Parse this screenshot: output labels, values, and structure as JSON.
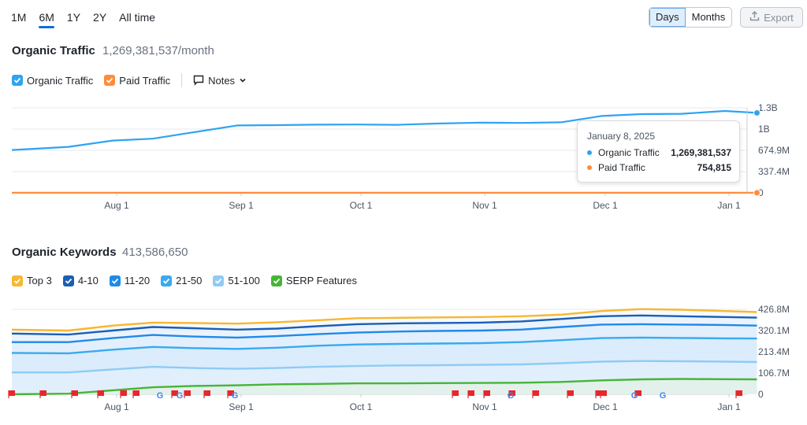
{
  "periods": [
    "1M",
    "6M",
    "1Y",
    "2Y",
    "All time"
  ],
  "active_period": "6M",
  "view": {
    "days": "Days",
    "months": "Months",
    "active": "Days"
  },
  "export_label": "Export",
  "traffic": {
    "title": "Organic Traffic",
    "value": "1,269,381,537/month",
    "legend": [
      {
        "label": "Organic Traffic",
        "color": "#2ea3f2",
        "checked": true
      },
      {
        "label": "Paid Traffic",
        "color": "#ff8c3a",
        "checked": true
      }
    ],
    "notes_label": "Notes",
    "tooltip": {
      "date": "January 8, 2025",
      "rows": [
        {
          "label": "Organic Traffic",
          "value": "1,269,381,537",
          "color": "#2ea3f2"
        },
        {
          "label": "Paid Traffic",
          "value": "754,815",
          "color": "#ff8c3a"
        }
      ]
    }
  },
  "keywords": {
    "title": "Organic Keywords",
    "value": "413,586,650",
    "legend": [
      {
        "label": "Top 3",
        "color": "#f8b731"
      },
      {
        "label": "4-10",
        "color": "#1a5fb4"
      },
      {
        "label": "11-20",
        "color": "#1f8ae8"
      },
      {
        "label": "21-50",
        "color": "#38aaf0"
      },
      {
        "label": "51-100",
        "color": "#8ecbf6"
      },
      {
        "label": "SERP Features",
        "color": "#46b535"
      }
    ]
  },
  "chart_data": [
    {
      "type": "line",
      "x_ticks": [
        "Aug 1",
        "Sep 1",
        "Oct 1",
        "Nov 1",
        "Dec 1",
        "Jan 1"
      ],
      "y_ticks": [
        "1.3B",
        "1B",
        "674.9M",
        "337.4M",
        "0"
      ],
      "ylim": [
        0,
        1350000000
      ],
      "x": [
        "Jul 10",
        "Jul 20",
        "Jul 31",
        "Aug 10",
        "Aug 20",
        "Aug 31",
        "Sep 10",
        "Sep 20",
        "Sep 30",
        "Oct 10",
        "Oct 20",
        "Oct 31",
        "Nov 10",
        "Nov 20",
        "Nov 30",
        "Dec 10",
        "Dec 20",
        "Dec 31",
        "Jan 8"
      ],
      "series": [
        {
          "name": "Organic Traffic",
          "color": "#2ea3f2",
          "values": [
            680000000,
            730000000,
            830000000,
            860000000,
            960000000,
            1070000000,
            1075000000,
            1082000000,
            1085000000,
            1080000000,
            1100000000,
            1115000000,
            1110000000,
            1120000000,
            1220000000,
            1250000000,
            1255000000,
            1300000000,
            1269381537
          ]
        },
        {
          "name": "Paid Traffic",
          "color": "#ff8c3a",
          "values": [
            750000,
            752000,
            751000,
            753000,
            754000,
            752000,
            751000,
            753000,
            754000,
            753000,
            752000,
            754000,
            753000,
            754000,
            754000,
            755000,
            754000,
            755000,
            754815
          ]
        }
      ]
    },
    {
      "type": "area",
      "x_ticks": [
        "Aug 1",
        "Sep 1",
        "Oct 1",
        "Nov 1",
        "Dec 1",
        "Jan 1"
      ],
      "y_ticks": [
        "426.8M",
        "320.1M",
        "213.4M",
        "106.7M",
        "0"
      ],
      "ylim": [
        0,
        426800000
      ],
      "x": [
        "Jul 10",
        "Jul 20",
        "Jul 31",
        "Aug 10",
        "Aug 20",
        "Aug 31",
        "Sep 10",
        "Sep 20",
        "Sep 30",
        "Oct 10",
        "Oct 20",
        "Oct 31",
        "Nov 10",
        "Nov 20",
        "Nov 30",
        "Dec 10",
        "Dec 20",
        "Dec 31",
        "Jan 8"
      ],
      "series": [
        {
          "name": "Top 3",
          "color": "#f8b731",
          "values": [
            325000000,
            320000000,
            345000000,
            360000000,
            358000000,
            355000000,
            362000000,
            372000000,
            382000000,
            384000000,
            386000000,
            388000000,
            392000000,
            400000000,
            418000000,
            428000000,
            425000000,
            418000000,
            413000000
          ]
        },
        {
          "name": "4-10",
          "color": "#1a5fb4",
          "values": [
            305000000,
            300000000,
            320000000,
            338000000,
            332000000,
            325000000,
            330000000,
            342000000,
            352000000,
            356000000,
            358000000,
            360000000,
            366000000,
            378000000,
            392000000,
            396000000,
            392000000,
            388000000,
            385000000
          ]
        },
        {
          "name": "11-20",
          "color": "#1f8ae8",
          "values": [
            262000000,
            262000000,
            282000000,
            298000000,
            290000000,
            285000000,
            292000000,
            302000000,
            310000000,
            315000000,
            318000000,
            320000000,
            325000000,
            338000000,
            350000000,
            352000000,
            350000000,
            348000000,
            345000000
          ]
        },
        {
          "name": "21-50",
          "color": "#38aaf0",
          "values": [
            208000000,
            206000000,
            224000000,
            238000000,
            232000000,
            228000000,
            234000000,
            244000000,
            250000000,
            253000000,
            255000000,
            257000000,
            262000000,
            272000000,
            282000000,
            285000000,
            283000000,
            281000000,
            280000000
          ]
        },
        {
          "name": "51-100",
          "color": "#8ecbf6",
          "values": [
            110000000,
            110000000,
            125000000,
            138000000,
            132000000,
            128000000,
            132000000,
            138000000,
            142000000,
            145000000,
            146000000,
            148000000,
            150000000,
            156000000,
            164000000,
            167000000,
            166000000,
            164000000,
            162000000
          ]
        },
        {
          "name": "SERP Features",
          "color": "#46b535",
          "values": [
            0,
            3000000,
            20000000,
            35000000,
            42000000,
            45000000,
            50000000,
            52000000,
            55000000,
            55000000,
            56000000,
            57000000,
            58000000,
            62000000,
            70000000,
            75000000,
            77000000,
            76000000,
            75000000
          ]
        }
      ]
    }
  ],
  "colors": {
    "accent": "#0f6fd6",
    "grid": "#e6e8eb",
    "axis_text": "#4b5563"
  }
}
